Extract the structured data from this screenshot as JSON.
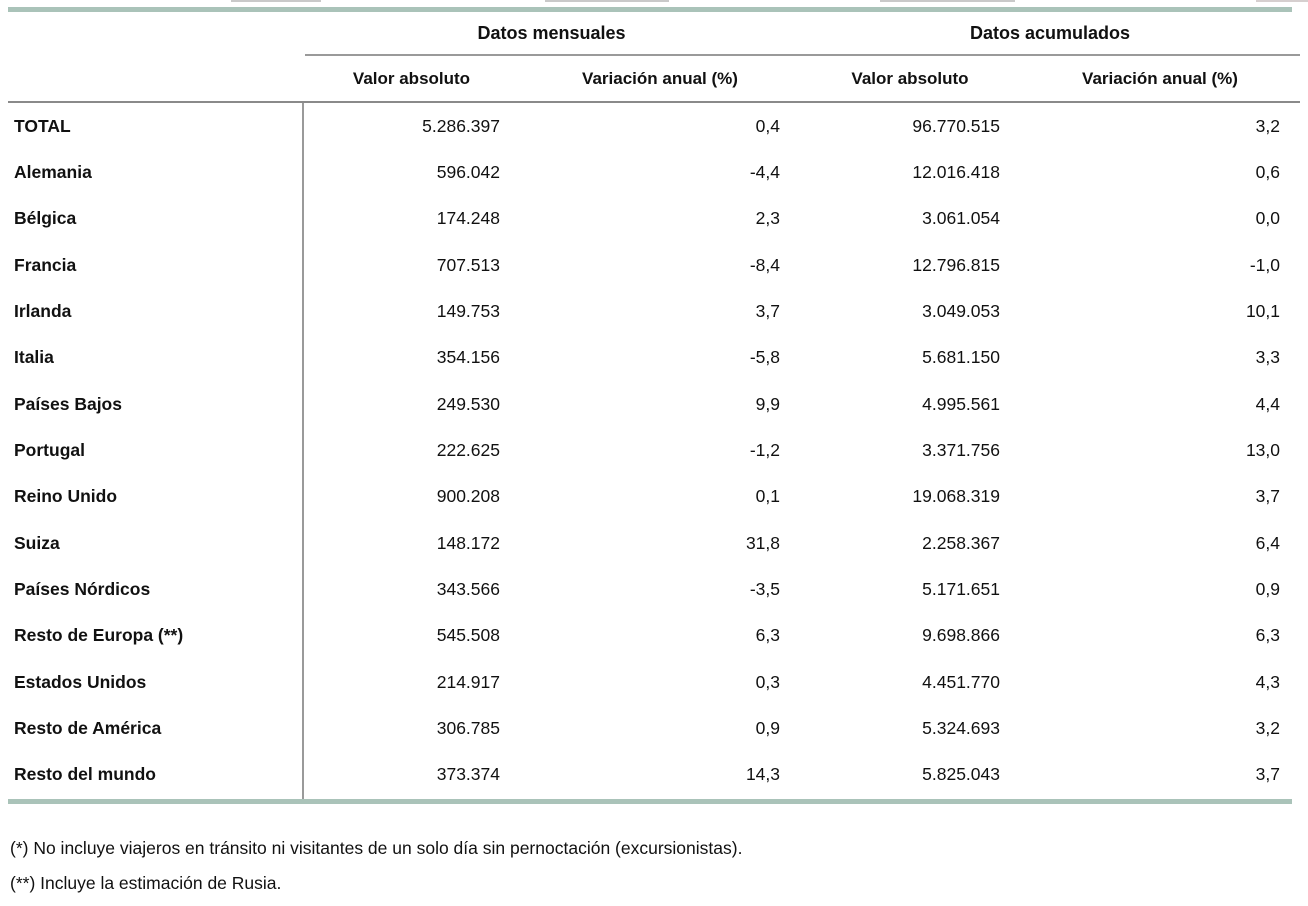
{
  "page": {
    "group_headers": {
      "monthly": "Datos mensuales",
      "accumulated": "Datos acumulados"
    },
    "column_headers": {
      "monthly_abs": "Valor absoluto",
      "monthly_var": "Variación anual (%)",
      "accum_abs": "Valor absoluto",
      "accum_var": "Variación anual (%)"
    },
    "rows": [
      {
        "label": "TOTAL",
        "monthly_abs": "5.286.397",
        "monthly_var": "0,4",
        "accum_abs": "96.770.515",
        "accum_var": "3,2"
      },
      {
        "label": "Alemania",
        "monthly_abs": "596.042",
        "monthly_var": "-4,4",
        "accum_abs": "12.016.418",
        "accum_var": "0,6"
      },
      {
        "label": "Bélgica",
        "monthly_abs": "174.248",
        "monthly_var": "2,3",
        "accum_abs": "3.061.054",
        "accum_var": "0,0"
      },
      {
        "label": "Francia",
        "monthly_abs": "707.513",
        "monthly_var": "-8,4",
        "accum_abs": "12.796.815",
        "accum_var": "-1,0"
      },
      {
        "label": "Irlanda",
        "monthly_abs": "149.753",
        "monthly_var": "3,7",
        "accum_abs": "3.049.053",
        "accum_var": "10,1"
      },
      {
        "label": "Italia",
        "monthly_abs": "354.156",
        "monthly_var": "-5,8",
        "accum_abs": "5.681.150",
        "accum_var": "3,3"
      },
      {
        "label": "Países Bajos",
        "monthly_abs": "249.530",
        "monthly_var": "9,9",
        "accum_abs": "4.995.561",
        "accum_var": "4,4"
      },
      {
        "label": "Portugal",
        "monthly_abs": "222.625",
        "monthly_var": "-1,2",
        "accum_abs": "3.371.756",
        "accum_var": "13,0"
      },
      {
        "label": "Reino Unido",
        "monthly_abs": "900.208",
        "monthly_var": "0,1",
        "accum_abs": "19.068.319",
        "accum_var": "3,7"
      },
      {
        "label": "Suiza",
        "monthly_abs": "148.172",
        "monthly_var": "31,8",
        "accum_abs": "2.258.367",
        "accum_var": "6,4"
      },
      {
        "label": "Países Nórdicos",
        "monthly_abs": "343.566",
        "monthly_var": "-3,5",
        "accum_abs": "5.171.651",
        "accum_var": "0,9"
      },
      {
        "label": "Resto de Europa (**)",
        "monthly_abs": "545.508",
        "monthly_var": "6,3",
        "accum_abs": "9.698.866",
        "accum_var": "6,3"
      },
      {
        "label": "Estados Unidos",
        "monthly_abs": "214.917",
        "monthly_var": "0,3",
        "accum_abs": "4.451.770",
        "accum_var": "4,3"
      },
      {
        "label": "Resto de América",
        "monthly_abs": "306.785",
        "monthly_var": "0,9",
        "accum_abs": "5.324.693",
        "accum_var": "3,2"
      },
      {
        "label": "Resto del mundo",
        "monthly_abs": "373.374",
        "monthly_var": "14,3",
        "accum_abs": "5.825.043",
        "accum_var": "3,7"
      }
    ],
    "footnotes": {
      "first": "(*) No incluye viajeros en tránsito ni visitantes de un solo día sin pernoctación (excursionistas).",
      "second": "(**) Incluye la estimación de Rusia."
    }
  },
  "colors": {
    "accent_rule": "#aac3b9",
    "line_gray": "#9a9a9a",
    "header_line_gray": "#8a8a8a",
    "text": "#111111"
  }
}
